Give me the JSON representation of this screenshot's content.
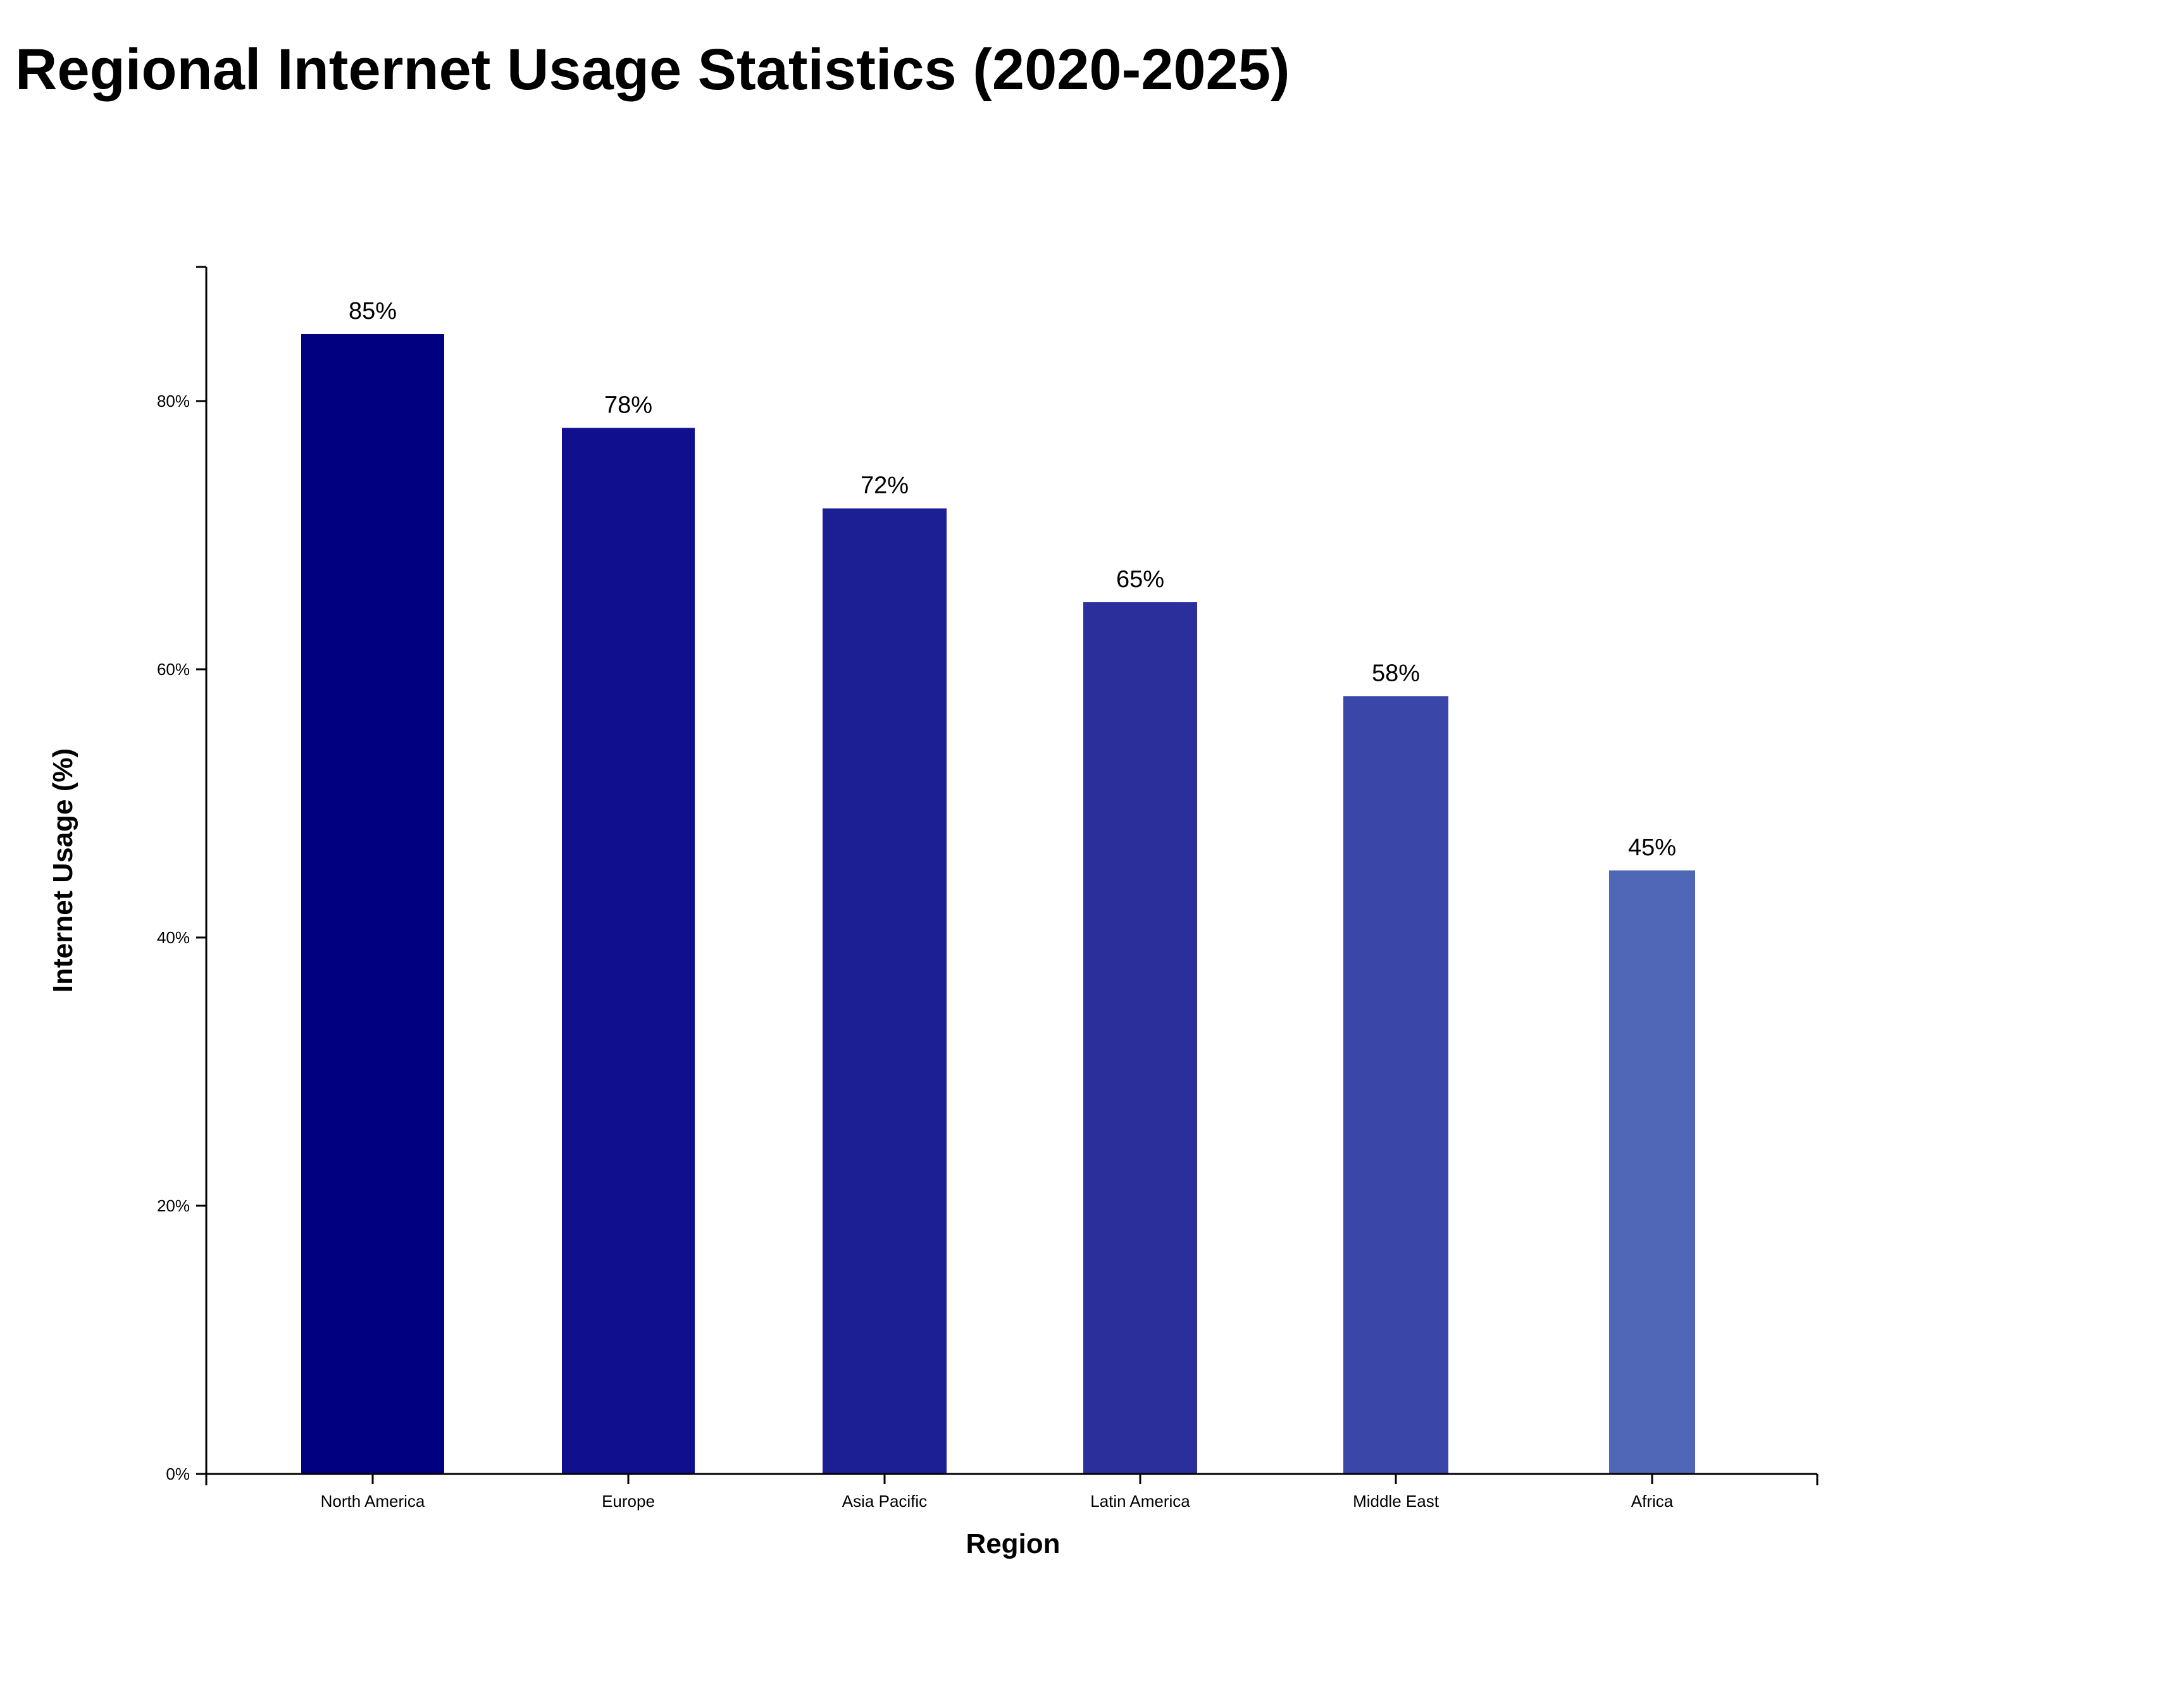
{
  "chart_data": {
    "type": "bar",
    "title": "Regional Internet Usage Statistics (2020-2025)",
    "xlabel": "Region",
    "ylabel": "Internet Usage (%)",
    "categories": [
      "North America",
      "Europe",
      "Asia Pacific",
      "Latin America",
      "Middle East",
      "Africa"
    ],
    "values": [
      85,
      78,
      72,
      65,
      58,
      45
    ],
    "data_labels": [
      "85%",
      "78%",
      "72%",
      "65%",
      "58%",
      "45%"
    ],
    "bar_colors": [
      "#000080",
      "#10108e",
      "#1c1f94",
      "#2a2f9c",
      "#3a46a8",
      "#5066b6"
    ],
    "ylim": [
      0,
      90
    ],
    "yticks": [
      0,
      20,
      40,
      60,
      80
    ],
    "ytick_labels": [
      "0%",
      "20%",
      "40%",
      "60%",
      "80%"
    ],
    "grid": false,
    "legend": "none"
  }
}
